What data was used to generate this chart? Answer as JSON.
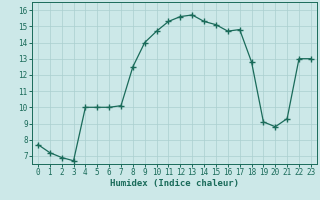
{
  "x": [
    0,
    1,
    2,
    3,
    4,
    5,
    6,
    7,
    8,
    9,
    10,
    11,
    12,
    13,
    14,
    15,
    16,
    17,
    18,
    19,
    20,
    21,
    22,
    23
  ],
  "y": [
    7.7,
    7.2,
    6.9,
    6.7,
    10.0,
    10.0,
    10.0,
    10.1,
    12.5,
    14.0,
    14.7,
    15.3,
    15.6,
    15.7,
    15.3,
    15.1,
    14.7,
    14.8,
    12.8,
    9.1,
    8.8,
    9.3,
    13.0,
    13.0
  ],
  "title": "",
  "xlabel": "Humidex (Indice chaleur)",
  "ylabel": "",
  "xlim": [
    -0.5,
    23.5
  ],
  "ylim": [
    6.5,
    16.5
  ],
  "yticks": [
    7,
    8,
    9,
    10,
    11,
    12,
    13,
    14,
    15,
    16
  ],
  "xticks": [
    0,
    1,
    2,
    3,
    4,
    5,
    6,
    7,
    8,
    9,
    10,
    11,
    12,
    13,
    14,
    15,
    16,
    17,
    18,
    19,
    20,
    21,
    22,
    23
  ],
  "line_color": "#1a6b5a",
  "marker": "+",
  "bg_color": "#cce8e8",
  "grid_color": "#aacfcf",
  "label_color": "#1a6b5a",
  "tick_color": "#1a6b5a",
  "spine_color": "#1a6b5a"
}
